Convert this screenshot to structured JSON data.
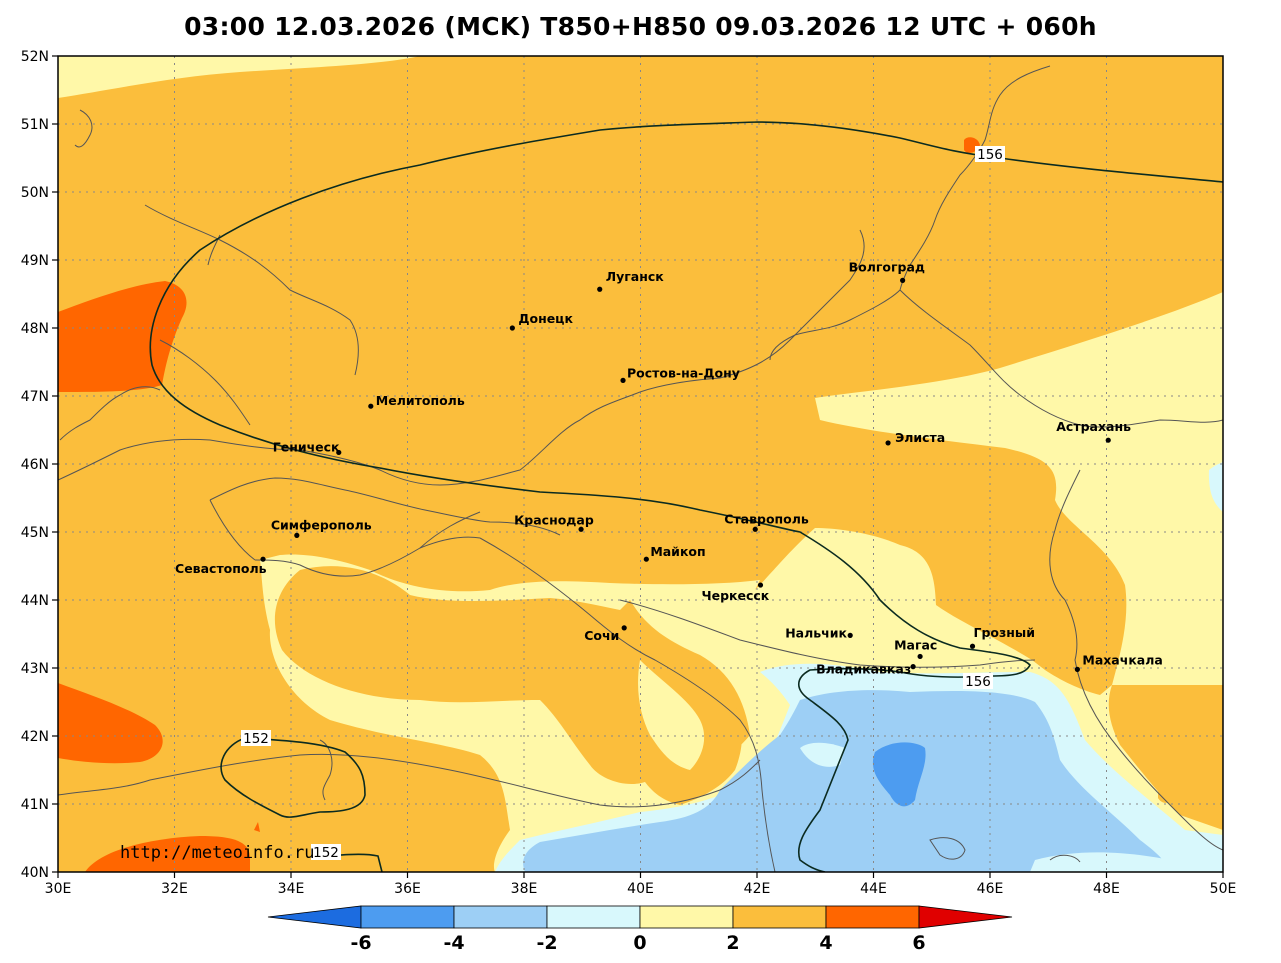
{
  "title": "03:00 12.03.2026 (MCK) T850+H850 09.03.2026 12 UTC + 060h",
  "watermark": "http://meteoinfo.ru",
  "map": {
    "lon_ticks": [
      "30E",
      "32E",
      "34E",
      "36E",
      "38E",
      "40E",
      "42E",
      "44E",
      "46E",
      "48E",
      "50E"
    ],
    "lat_ticks": [
      "52N",
      "51N",
      "50N",
      "49N",
      "48N",
      "47N",
      "46N",
      "45N",
      "44N",
      "43N",
      "42N",
      "41N",
      "40N"
    ],
    "cities": [
      {
        "name": "Луганск",
        "lon": 39.3,
        "lat": 48.57
      },
      {
        "name": "Донецк",
        "lon": 37.8,
        "lat": 48.0
      },
      {
        "name": "Волгоград",
        "lon": 44.5,
        "lat": 48.7
      },
      {
        "name": "Ростов-на-Дону",
        "lon": 39.7,
        "lat": 47.23
      },
      {
        "name": "Мелитополь",
        "lon": 35.37,
        "lat": 46.85
      },
      {
        "name": "Геническ",
        "lon": 34.82,
        "lat": 46.17
      },
      {
        "name": "Элиста",
        "lon": 44.25,
        "lat": 46.31
      },
      {
        "name": "Астрахань",
        "lon": 48.03,
        "lat": 46.35
      },
      {
        "name": "Симферополь",
        "lon": 34.1,
        "lat": 44.95
      },
      {
        "name": "Краснодар",
        "lon": 38.98,
        "lat": 45.04
      },
      {
        "name": "Ставрополь",
        "lon": 41.97,
        "lat": 45.04
      },
      {
        "name": "Севастополь",
        "lon": 33.52,
        "lat": 44.6
      },
      {
        "name": "Майкоп",
        "lon": 40.1,
        "lat": 44.6
      },
      {
        "name": "Черкесск",
        "lon": 42.06,
        "lat": 44.22
      },
      {
        "name": "Сочи",
        "lon": 39.72,
        "lat": 43.59
      },
      {
        "name": "Нальчик",
        "lon": 43.6,
        "lat": 43.48
      },
      {
        "name": "Магас",
        "lon": 44.8,
        "lat": 43.17
      },
      {
        "name": "Грозный",
        "lon": 45.7,
        "lat": 43.32
      },
      {
        "name": "Владикавказ",
        "lon": 44.68,
        "lat": 43.02
      },
      {
        "name": "Махачкала",
        "lon": 47.5,
        "lat": 42.98
      }
    ],
    "isolines": {
      "label_156_a": "156",
      "label_156_b": "156",
      "label_152_a": "152",
      "label_152_b": "152"
    },
    "temp_colors": {
      "lt_-6": "#1c6ce0",
      "-6_-4": "#4d9cf0",
      "-4_-2": "#9dcff5",
      "-2_0": "#d8f8fc",
      "0_2": "#fff8a8",
      "2_4": "#fbbe3c",
      "4_6": "#ff6600",
      "gt_6": "#e00000"
    }
  },
  "colorbar": {
    "labels": [
      "-6",
      "-4",
      "-2",
      "0",
      "2",
      "4",
      "6"
    ]
  }
}
